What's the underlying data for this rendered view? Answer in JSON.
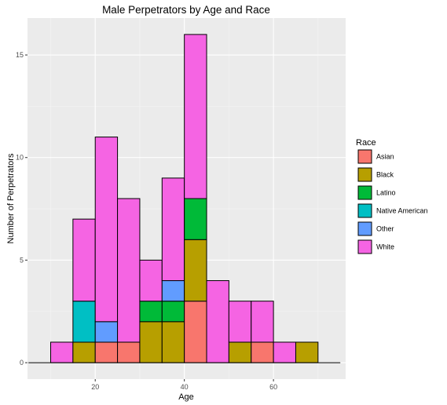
{
  "chart_data": {
    "type": "bar",
    "title": "Male Perpetrators by Age and Race",
    "xlabel": "Age",
    "ylabel": "Number of Perpetrators",
    "x_ticks": [
      20,
      40,
      60
    ],
    "y_ticks": [
      0,
      5,
      10,
      15
    ],
    "xlim": [
      4.8,
      76.2
    ],
    "ylim": [
      -0.8,
      16.8
    ],
    "bin_width": 5,
    "bins": [
      5,
      10,
      15,
      20,
      25,
      30,
      35,
      40,
      45,
      50,
      55,
      60,
      65,
      70
    ],
    "legend": {
      "title": "Race",
      "placement": "right"
    },
    "series": [
      {
        "name": "Asian",
        "color": "#F8766D",
        "values": [
          0,
          0,
          0,
          1,
          1,
          0,
          0,
          3,
          0,
          0,
          1,
          0,
          0,
          0
        ]
      },
      {
        "name": "Black",
        "color": "#B79F00",
        "values": [
          0,
          0,
          1,
          0,
          0,
          2,
          2,
          3,
          0,
          1,
          0,
          0,
          1,
          0
        ]
      },
      {
        "name": "Latino",
        "color": "#00BA38",
        "values": [
          0,
          0,
          0,
          0,
          0,
          1,
          1,
          2,
          0,
          0,
          0,
          0,
          0,
          0
        ]
      },
      {
        "name": "Native American",
        "color": "#00BFC4",
        "values": [
          0,
          0,
          2,
          0,
          0,
          0,
          0,
          0,
          0,
          0,
          0,
          0,
          0,
          0
        ]
      },
      {
        "name": "Other",
        "color": "#619CFF",
        "values": [
          0,
          0,
          0,
          1,
          0,
          0,
          1,
          0,
          0,
          0,
          0,
          0,
          0,
          0
        ]
      },
      {
        "name": "White",
        "color": "#F564E3",
        "values": [
          0,
          1,
          4,
          9,
          7,
          2,
          5,
          8,
          4,
          2,
          2,
          1,
          0,
          0
        ]
      }
    ]
  }
}
